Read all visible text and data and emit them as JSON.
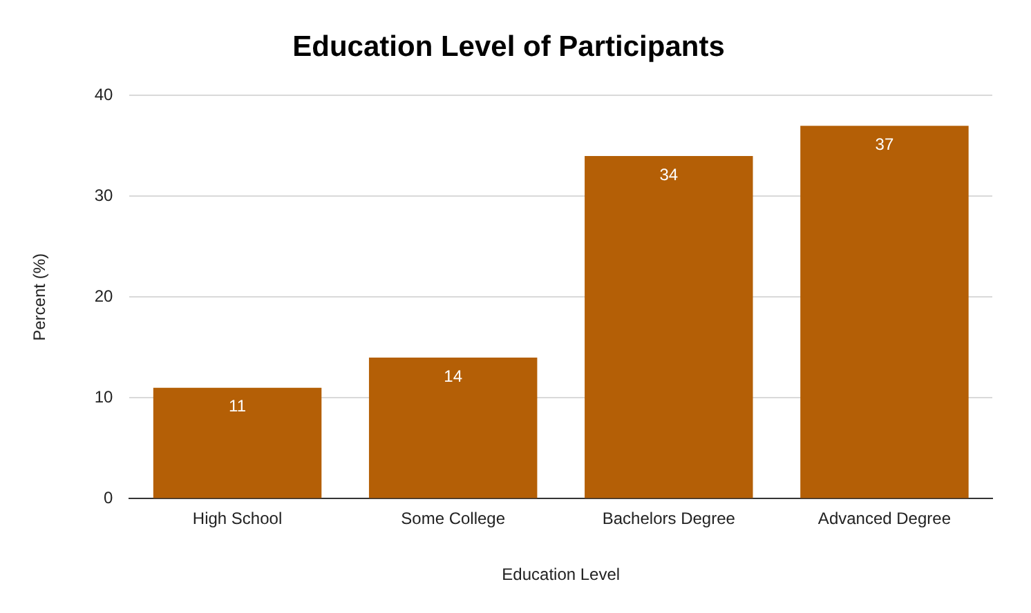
{
  "chart_data": {
    "type": "bar",
    "title": "Education Level of Participants",
    "xlabel": "Education Level",
    "ylabel": "Percent (%)",
    "categories": [
      "High School",
      "Some College",
      "Bachelors Degree",
      "Advanced Degree"
    ],
    "values": [
      11,
      14,
      34,
      37
    ],
    "color": "#b45f06",
    "ylim": [
      0,
      40
    ],
    "yticks": [
      0,
      10,
      20,
      30,
      40
    ],
    "grid": "y",
    "legend": false,
    "data_labels": true
  }
}
